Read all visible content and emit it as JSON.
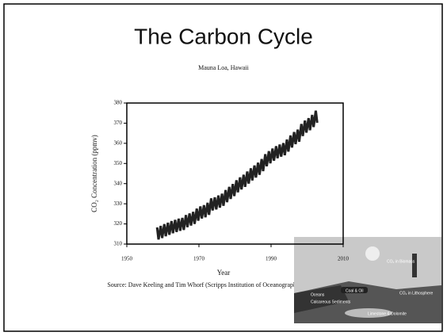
{
  "slide_title": "The Carbon Cycle",
  "source": "Source: Dave Keeling and Tim Whorf (Scripps Institution of Oceanography)",
  "inset_labels": [
    "CO₂ in Biomass",
    "Oceans",
    "Coal & Oil",
    "CO₂ in Lithosphere",
    "Calcareous Sediments",
    "Limestone & Dolomite"
  ],
  "chart_data": {
    "type": "line",
    "title": "Mauna Loa, Hawaii",
    "x_label": "Year",
    "y_label": "CO₂ Concentration (ppmv)",
    "xlim": [
      1950,
      2010
    ],
    "xticks": [
      1950,
      1970,
      1990,
      2010
    ],
    "ylim": [
      310,
      380
    ],
    "yticks": [
      310,
      320,
      330,
      340,
      350,
      360,
      370,
      380
    ],
    "color": "#222222",
    "x": [
      1958.4,
      1958.8,
      1959.4,
      1959.8,
      1960.4,
      1960.8,
      1961.4,
      1961.8,
      1962.4,
      1962.8,
      1963.4,
      1963.8,
      1964.4,
      1964.8,
      1965.4,
      1965.8,
      1966.4,
      1966.8,
      1967.4,
      1967.8,
      1968.4,
      1968.8,
      1969.4,
      1969.8,
      1970.4,
      1970.8,
      1971.4,
      1971.8,
      1972.4,
      1972.8,
      1973.4,
      1973.8,
      1974.4,
      1974.8,
      1975.4,
      1975.8,
      1976.4,
      1976.8,
      1977.4,
      1977.8,
      1978.4,
      1978.8,
      1979.4,
      1979.8,
      1980.4,
      1980.8,
      1981.4,
      1981.8,
      1982.4,
      1982.8,
      1983.4,
      1983.8,
      1984.4,
      1984.8,
      1985.4,
      1985.8,
      1986.4,
      1986.8,
      1987.4,
      1987.8,
      1988.4,
      1988.8,
      1989.4,
      1989.8,
      1990.4,
      1990.8,
      1991.4,
      1991.8,
      1992.4,
      1992.8,
      1993.4,
      1993.8,
      1994.4,
      1994.8,
      1995.4,
      1995.8,
      1996.4,
      1996.8,
      1997.4,
      1997.8,
      1998.4,
      1998.8,
      1999.4,
      1999.8,
      2000.4,
      2000.8,
      2001.4,
      2001.8,
      2002.4,
      2002.8
    ],
    "values": [
      318.3,
      312.3,
      319.0,
      313.0,
      319.9,
      313.9,
      320.6,
      314.6,
      321.4,
      315.4,
      322.0,
      316.0,
      322.6,
      316.6,
      323.0,
      317.0,
      324.4,
      318.4,
      325.2,
      319.2,
      326.0,
      320.0,
      327.6,
      321.6,
      328.7,
      322.7,
      329.3,
      323.3,
      330.5,
      324.5,
      332.7,
      326.7,
      333.2,
      327.2,
      334.1,
      328.1,
      335.0,
      329.0,
      336.8,
      330.8,
      338.4,
      332.4,
      339.8,
      333.8,
      341.7,
      335.7,
      343.1,
      337.1,
      344.4,
      338.4,
      346.0,
      340.0,
      347.6,
      341.6,
      349.0,
      343.0,
      350.4,
      344.4,
      352.2,
      346.2,
      354.6,
      348.6,
      356.1,
      350.1,
      357.4,
      351.4,
      358.6,
      352.6,
      359.4,
      353.4,
      360.1,
      354.1,
      361.9,
      355.9,
      363.9,
      357.9,
      365.6,
      359.6,
      366.8,
      360.8,
      369.6,
      363.6,
      371.3,
      365.3,
      372.5,
      366.5,
      374.1,
      368.1,
      376.2,
      370.2
    ]
  }
}
